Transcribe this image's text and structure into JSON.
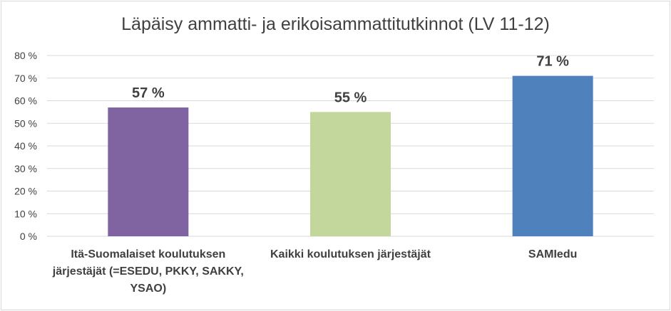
{
  "chart_data": {
    "type": "bar",
    "title": "Läpäisy ammatti- ja erikoisammattitutkinnot (LV 11-12)",
    "categories": [
      "Itä-Suomalaiset koulutuksen järjestäjät (=ESEDU, PKKY, SAKKY, YSAO)",
      "Kaikki koulutuksen järjestäjät",
      "SAMIedu"
    ],
    "values": [
      57,
      55,
      71
    ],
    "data_labels": [
      "57 %",
      "55 %",
      "71 %"
    ],
    "colors": [
      "#8064a2",
      "#c3d69b",
      "#4f81bd"
    ],
    "ylim": [
      0,
      80
    ],
    "yticks": [
      "0 %",
      "10 %",
      "20 %",
      "30 %",
      "40 %",
      "50 %",
      "60 %",
      "70 %",
      "80 %"
    ],
    "grid": true,
    "legend": "none"
  }
}
